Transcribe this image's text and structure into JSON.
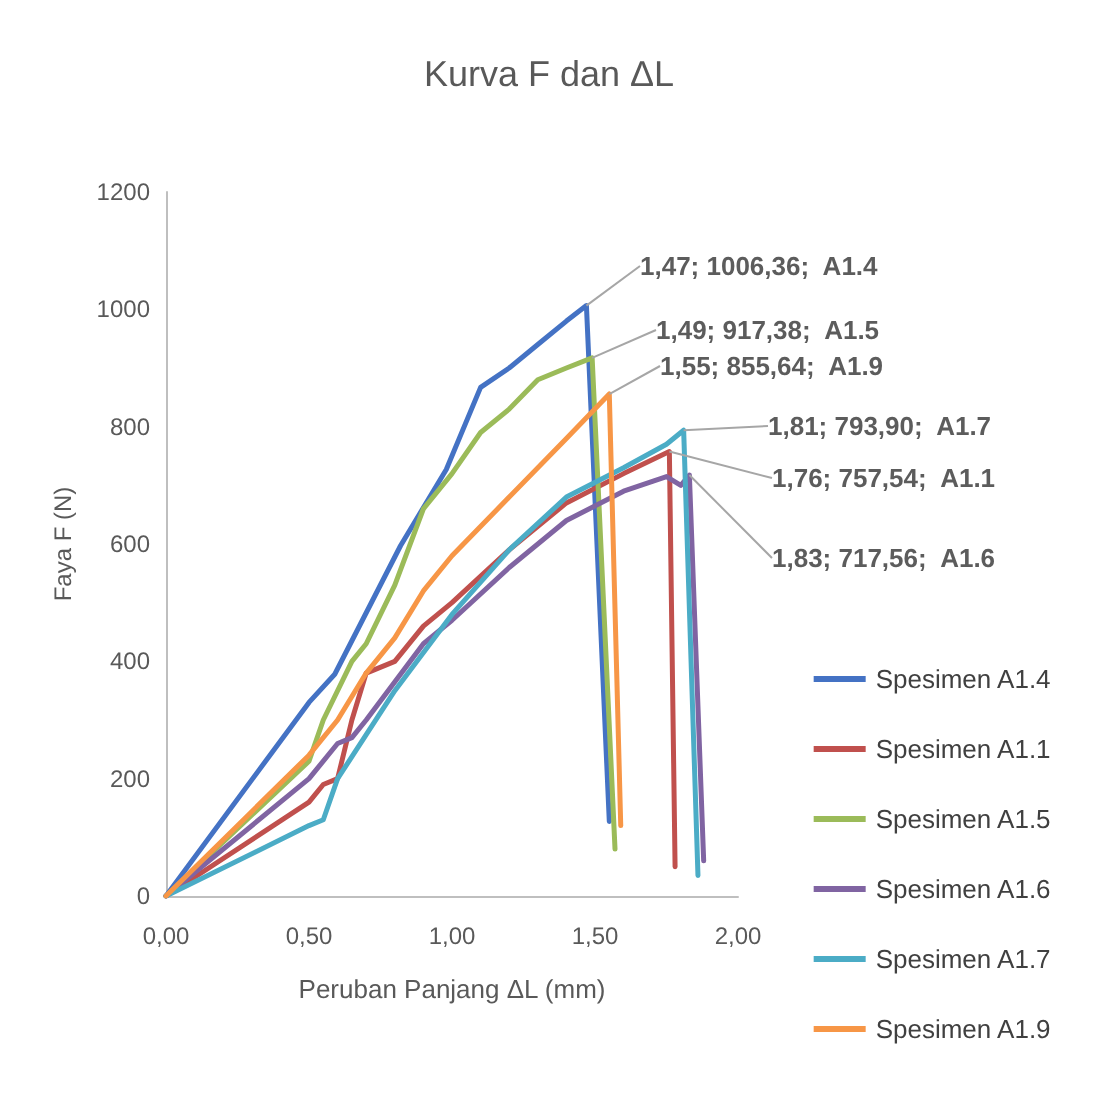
{
  "chart_data": {
    "type": "line",
    "title": "Kurva F dan ΔL",
    "xlabel": "Peruban Panjang ΔL (mm)",
    "ylabel": "Faya F (N)",
    "xlim": [
      0,
      2
    ],
    "xticks": [
      {
        "value": 0,
        "label": "0,00"
      },
      {
        "value": 0.5,
        "label": "0,50"
      },
      {
        "value": 1,
        "label": "1,00"
      },
      {
        "value": 1.5,
        "label": "1,50"
      },
      {
        "value": 2,
        "label": "2,00"
      }
    ],
    "ylim": [
      0,
      1200
    ],
    "yticks": [
      0,
      200,
      400,
      600,
      800,
      1000,
      1200
    ],
    "grid": false,
    "legend": "right",
    "marker": "none",
    "line_style": "solid",
    "series": [
      {
        "name": "Spesimen A1.4",
        "color": "#4472c4",
        "x": [
          0,
          0.5,
          0.59,
          0.82,
          0.98,
          1.1,
          1.2,
          1.3,
          1.4,
          1.47,
          1.55
        ],
        "values": [
          0,
          330,
          378,
          597,
          727,
          867,
          900,
          940,
          980,
          1006.36,
          127
        ]
      },
      {
        "name": "Spesimen A1.1",
        "color": "#c0504d",
        "x": [
          0,
          0.5,
          0.55,
          0.6,
          0.65,
          0.7,
          0.8,
          0.9,
          1.0,
          1.2,
          1.4,
          1.6,
          1.76,
          1.78
        ],
        "values": [
          0,
          160,
          190,
          200,
          300,
          380,
          400,
          460,
          500,
          590,
          670,
          720,
          757.54,
          50
        ]
      },
      {
        "name": "Spesimen A1.5",
        "color": "#9bbb59",
        "x": [
          0,
          0.5,
          0.55,
          0.65,
          0.7,
          0.8,
          0.9,
          1.0,
          1.1,
          1.2,
          1.3,
          1.4,
          1.49,
          1.57
        ],
        "values": [
          0,
          230,
          300,
          400,
          430,
          530,
          660,
          720,
          790,
          830,
          880,
          900,
          917.38,
          80
        ]
      },
      {
        "name": "Spesimen A1.6",
        "color": "#8064a2",
        "x": [
          0,
          0.5,
          0.6,
          0.65,
          0.7,
          0.9,
          1.0,
          1.2,
          1.4,
          1.6,
          1.75,
          1.8,
          1.83,
          1.88
        ],
        "values": [
          0,
          200,
          260,
          270,
          300,
          430,
          470,
          560,
          640,
          690,
          715,
          700,
          717.56,
          60
        ]
      },
      {
        "name": "Spesimen A1.7",
        "color": "#4bacc6",
        "x": [
          0,
          0.5,
          0.55,
          0.6,
          0.8,
          1.0,
          1.2,
          1.4,
          1.6,
          1.75,
          1.81,
          1.86
        ],
        "values": [
          0,
          120,
          130,
          200,
          350,
          480,
          590,
          680,
          730,
          770,
          793.9,
          35
        ]
      },
      {
        "name": "Spesimen A1.9",
        "color": "#f79646",
        "x": [
          0,
          0.5,
          0.6,
          0.7,
          0.8,
          0.9,
          1.0,
          1.2,
          1.4,
          1.55,
          1.59
        ],
        "values": [
          0,
          240,
          300,
          380,
          440,
          520,
          580,
          680,
          780,
          855.64,
          120
        ]
      }
    ],
    "annotations": [
      {
        "text": "1,47; 1006,36;  A1.4",
        "x": 1.47,
        "y": 1006.36
      },
      {
        "text": "1,49; 917,38;  A1.5",
        "x": 1.49,
        "y": 917.38
      },
      {
        "text": "1,55; 855,64;  A1.9",
        "x": 1.55,
        "y": 855.64
      },
      {
        "text": "1,81; 793,90;  A1.7",
        "x": 1.81,
        "y": 793.9
      },
      {
        "text": "1,76; 757,54;  A1.1",
        "x": 1.76,
        "y": 757.54
      },
      {
        "text": "1,83; 717,56;  A1.6",
        "x": 1.83,
        "y": 717.56
      }
    ]
  }
}
